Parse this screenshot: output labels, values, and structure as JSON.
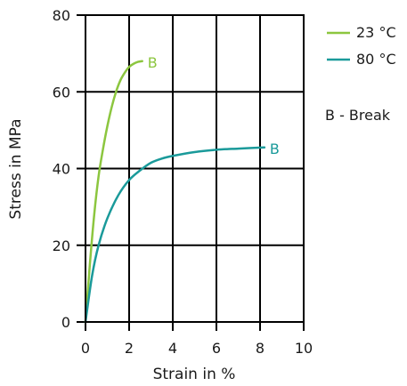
{
  "chart_data": {
    "type": "line",
    "title": "",
    "xlabel": "Strain in %",
    "ylabel": "Stress in MPa",
    "xlim": [
      0,
      10
    ],
    "ylim": [
      0,
      80
    ],
    "xticks": [
      0,
      2,
      4,
      6,
      8,
      10
    ],
    "yticks": [
      0,
      20,
      40,
      60,
      80
    ],
    "grid": true,
    "legend_position": "right",
    "series": [
      {
        "name": "23 °C",
        "color": "#8cc63f",
        "break_label": "B",
        "x": [
          0,
          0.2,
          0.4,
          0.6,
          0.8,
          1.0,
          1.2,
          1.4,
          1.6,
          1.8,
          2.0,
          2.2,
          2.4,
          2.6
        ],
        "y": [
          0,
          15,
          28,
          38,
          45,
          51,
          56,
          60,
          63,
          65,
          66.5,
          67.3,
          67.8,
          68
        ]
      },
      {
        "name": "80 °C",
        "color": "#1a9a9a",
        "break_label": "B",
        "x": [
          0,
          0.3,
          0.6,
          1.0,
          1.5,
          2.0,
          2.5,
          3.0,
          3.5,
          4.0,
          5.0,
          6.0,
          7.0,
          8.2
        ],
        "y": [
          0,
          12,
          20,
          27,
          33,
          37,
          39.5,
          41.5,
          42.6,
          43.3,
          44.3,
          44.9,
          45.2,
          45.5
        ]
      }
    ],
    "annotations": [
      "B - Break"
    ]
  }
}
